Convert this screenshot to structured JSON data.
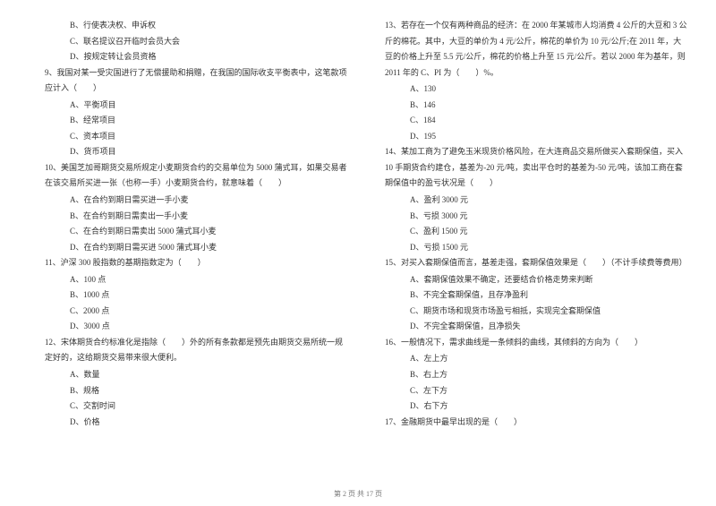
{
  "left": {
    "q8": {
      "b": "B、行使表决权、申诉权",
      "c": "C、联名提议召开临时会员大会",
      "d": "D、按规定转让会员资格"
    },
    "q9": {
      "stem": "9、我国对某一受灾国进行了无偿援助和捐赠，在我国的国际收支平衡表中，这笔款项应计入（　　）",
      "a": "A、平衡项目",
      "b": "B、经常项目",
      "c": "C、资本项目",
      "d": "D、货币项目"
    },
    "q10": {
      "stem": "10、美国芝加哥期货交易所规定小麦期货合约的交易单位为 5000 蒲式耳，如果交易者在该交易所买进一张（也称一手）小麦期货合约，就意味着（　　）",
      "a": "A、在合约到期日需买进一手小麦",
      "b": "B、在合约到期日需卖出一手小麦",
      "c": "C、在合约到期日需卖出 5000 蒲式耳小麦",
      "d": "D、在合约到期日需买进 5000 蒲式耳小麦"
    },
    "q11": {
      "stem": "11、沪深 300 股指数的基期指数定为（　　）",
      "a": "A、100 点",
      "b": "B、1000 点",
      "c": "C、2000 点",
      "d": "D、3000 点"
    },
    "q12": {
      "stem": "12、宋体期货合约标准化是指除（　　）外的所有条款都是预先由期货交易所统一规定好的，这给期货交易带来很大便利。",
      "a": "A、数量",
      "b": "B、规格",
      "c": "C、交割时间",
      "d": "D、价格"
    }
  },
  "right": {
    "q13": {
      "stem": "13、若存在一个仅有两种商品的经济：在 2000 年某城市人均消费 4 公斤的大豆和 3 公斤的棉花。其中，大豆的单价为 4 元/公斤，棉花的单价为 10 元/公斤;在 2011 年，大豆的价格上升至 5.5 元/公斤，棉花的价格上升至 15 元/公斤。若以 2000 年为基年，则 2011 年的 C、PI 为（　　）%。",
      "a": "A、130",
      "b": "B、146",
      "c": "C、184",
      "d": "D、195"
    },
    "q14": {
      "stem": "14、某加工商为了避免玉米现货价格风险，在大连商品交易所做买入套期保值，买入 10 手期货合约建仓，基差为-20 元/吨，卖出平仓时的基差为-50 元/吨，该加工商在套期保值中的盈亏状况是（　　）",
      "a": "A、盈利 3000 元",
      "b": "B、亏损 3000 元",
      "c": "C、盈利 1500 元",
      "d": "D、亏损 1500 元"
    },
    "q15": {
      "stem": "15、对买入套期保值而言，基差走强，套期保值效果是（　　）（不计手续费等费用）",
      "a": "A、套期保值效果不确定，还要结合价格走势来判断",
      "b": "B、不完全套期保值，且存净盈利",
      "c": "C、期货市场和现货市场盈亏相抵，实现完全套期保值",
      "d": "D、不完全套期保值，且净损失"
    },
    "q16": {
      "stem": "16、一般情况下，需求曲线是一条倾斜的曲线，其倾斜的方向为（　　）",
      "a": "A、左上方",
      "b": "B、右上方",
      "c": "C、左下方",
      "d": "D、右下方"
    },
    "q17": {
      "stem": "17、金融期货中最早出现的是（　　）"
    }
  },
  "footer": "第 2 页 共 17 页"
}
